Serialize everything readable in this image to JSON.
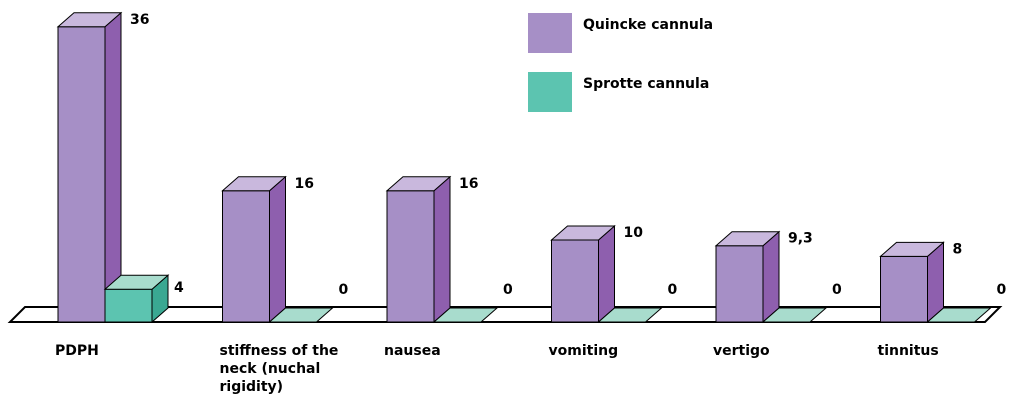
{
  "chart_data": {
    "type": "bar3d",
    "categories": [
      "PDPH",
      "stiffness of the neck (nuchal rigidity)",
      "nausea",
      "vomiting",
      "vertigo",
      "tinnitus"
    ],
    "series": [
      {
        "name": "Quincke cannula",
        "color": "#a68fc6",
        "values": [
          36,
          16,
          16,
          10,
          9.3,
          8
        ],
        "value_labels": [
          "36",
          "16",
          "16",
          "10",
          "9,3",
          "8"
        ]
      },
      {
        "name": "Sprotte cannula",
        "color": "#5cc4b0",
        "values": [
          4,
          0,
          0,
          0,
          0,
          0
        ]
      }
    ]
  }
}
